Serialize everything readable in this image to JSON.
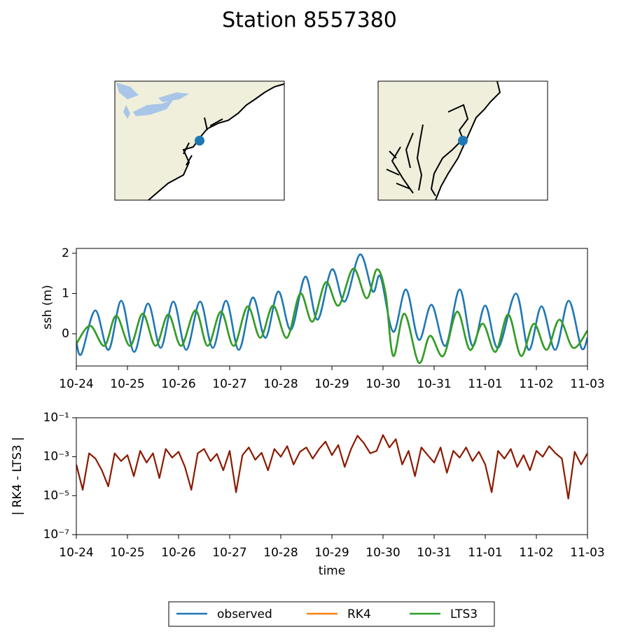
{
  "title": "Station 8557380",
  "chart_data": [
    {
      "type": "line",
      "ylabel": "ssh (m)",
      "xlim": [
        0,
        10
      ],
      "ylim": [
        -0.8,
        2.12
      ],
      "yticks": [
        0,
        1,
        2
      ],
      "xticks": [
        {
          "value": 0,
          "label": "10-24"
        },
        {
          "value": 1,
          "label": "10-25"
        },
        {
          "value": 2,
          "label": "10-26"
        },
        {
          "value": 3,
          "label": "10-27"
        },
        {
          "value": 4,
          "label": "10-28"
        },
        {
          "value": 5,
          "label": "10-29"
        },
        {
          "value": 6,
          "label": "10-30"
        },
        {
          "value": 7,
          "label": "10-31"
        },
        {
          "value": 8,
          "label": "11-01"
        },
        {
          "value": 9,
          "label": "11-02"
        },
        {
          "value": 10,
          "label": "11-03"
        }
      ],
      "legend": "lower center",
      "series": [
        {
          "name": "observed",
          "color": "#1f77b4",
          "x": [
            0,
            0.1,
            0.37,
            0.63,
            0.88,
            1.13,
            1.4,
            1.65,
            1.9,
            2.15,
            2.42,
            2.67,
            2.93,
            3.18,
            3.45,
            3.7,
            3.95,
            4.2,
            4.48,
            4.72,
            5.0,
            5.25,
            5.55,
            5.8,
            5.95,
            6.2,
            6.45,
            6.7,
            6.95,
            7.22,
            7.5,
            7.75,
            8.0,
            8.25,
            8.6,
            8.85,
            9.1,
            9.37,
            9.63,
            9.88,
            10
          ],
          "values": [
            -0.2,
            -0.5,
            0.58,
            -0.4,
            0.82,
            -0.45,
            0.75,
            -0.35,
            0.8,
            -0.4,
            0.8,
            -0.35,
            0.82,
            -0.4,
            0.9,
            -0.1,
            1.05,
            0.1,
            1.42,
            0.35,
            1.6,
            0.8,
            1.97,
            1.05,
            1.42,
            0.05,
            1.1,
            -0.15,
            0.72,
            -0.3,
            1.1,
            -0.3,
            0.7,
            -0.35,
            1.0,
            -0.4,
            0.68,
            -0.4,
            0.82,
            -0.35,
            -0.1
          ]
        },
        {
          "name": "RK4",
          "color": "#ff7f0e",
          "x": [
            0,
            0.27,
            0.55,
            0.78,
            1.05,
            1.3,
            1.55,
            1.8,
            2.05,
            2.33,
            2.57,
            2.83,
            3.08,
            3.35,
            3.6,
            3.85,
            4.12,
            4.38,
            4.62,
            4.88,
            5.13,
            5.42,
            5.68,
            5.88,
            6.05,
            6.2,
            6.42,
            6.7,
            6.92,
            7.18,
            7.45,
            7.7,
            7.95,
            8.2,
            8.45,
            8.7,
            8.95,
            9.2,
            9.45,
            9.72,
            10
          ],
          "values": [
            -0.25,
            0.2,
            -0.3,
            0.45,
            -0.3,
            0.5,
            -0.3,
            0.48,
            -0.3,
            0.58,
            -0.3,
            0.55,
            -0.3,
            0.68,
            -0.1,
            0.7,
            -0.1,
            1.0,
            0.3,
            1.28,
            0.7,
            1.62,
            0.88,
            1.6,
            1.0,
            -0.55,
            0.5,
            -0.72,
            -0.05,
            -0.55,
            0.55,
            -0.4,
            0.25,
            -0.45,
            0.48,
            -0.55,
            0.25,
            -0.4,
            0.35,
            -0.35,
            0.08
          ]
        },
        {
          "name": "LTS3",
          "color": "#2ca02c",
          "x": [
            0,
            0.27,
            0.55,
            0.78,
            1.05,
            1.3,
            1.55,
            1.8,
            2.05,
            2.33,
            2.57,
            2.83,
            3.08,
            3.35,
            3.6,
            3.85,
            4.12,
            4.38,
            4.62,
            4.88,
            5.13,
            5.42,
            5.68,
            5.88,
            6.05,
            6.2,
            6.42,
            6.7,
            6.92,
            7.18,
            7.45,
            7.7,
            7.95,
            8.2,
            8.45,
            8.7,
            8.95,
            9.2,
            9.45,
            9.72,
            10
          ],
          "values": [
            -0.25,
            0.2,
            -0.3,
            0.45,
            -0.3,
            0.5,
            -0.3,
            0.48,
            -0.3,
            0.58,
            -0.3,
            0.55,
            -0.3,
            0.68,
            -0.1,
            0.7,
            -0.1,
            1.0,
            0.3,
            1.28,
            0.7,
            1.62,
            0.88,
            1.6,
            1.0,
            -0.55,
            0.5,
            -0.72,
            -0.05,
            -0.55,
            0.55,
            -0.4,
            0.25,
            -0.45,
            0.48,
            -0.55,
            0.25,
            -0.4,
            0.35,
            -0.35,
            0.08
          ]
        }
      ]
    },
    {
      "type": "line",
      "ylabel": "| RK4 - LTS3 |",
      "xlabel": "time",
      "yscale": "log",
      "color": "#8b1a00",
      "xlim": [
        0,
        10
      ],
      "ylim": [
        1e-07,
        0.1
      ],
      "yticks": [
        {
          "value": 1e-07,
          "label": "10⁻⁷"
        },
        {
          "value": 1e-05,
          "label": "10⁻⁵"
        },
        {
          "value": 0.001,
          "label": "10⁻³"
        },
        {
          "value": 0.1,
          "label": "10⁻¹"
        }
      ],
      "xticks": [
        {
          "value": 0,
          "label": "10-24"
        },
        {
          "value": 1,
          "label": "10-25"
        },
        {
          "value": 2,
          "label": "10-26"
        },
        {
          "value": 3,
          "label": "10-27"
        },
        {
          "value": 4,
          "label": "10-28"
        },
        {
          "value": 5,
          "label": "10-29"
        },
        {
          "value": 6,
          "label": "10-30"
        },
        {
          "value": 7,
          "label": "10-31"
        },
        {
          "value": 8,
          "label": "11-01"
        },
        {
          "value": 9,
          "label": "11-02"
        },
        {
          "value": 10,
          "label": "11-03"
        }
      ],
      "x": [
        0,
        0.125,
        0.25,
        0.375,
        0.5,
        0.625,
        0.75,
        0.875,
        1,
        1.125,
        1.25,
        1.375,
        1.5,
        1.625,
        1.75,
        1.875,
        2,
        2.125,
        2.25,
        2.375,
        2.5,
        2.625,
        2.75,
        2.875,
        3,
        3.125,
        3.25,
        3.375,
        3.5,
        3.625,
        3.75,
        3.875,
        4,
        4.125,
        4.25,
        4.375,
        4.5,
        4.625,
        4.75,
        4.875,
        5,
        5.125,
        5.25,
        5.375,
        5.5,
        5.625,
        5.75,
        5.875,
        6,
        6.125,
        6.25,
        6.375,
        6.5,
        6.625,
        6.75,
        6.875,
        7,
        7.125,
        7.25,
        7.375,
        7.5,
        7.625,
        7.75,
        7.875,
        8,
        8.125,
        8.25,
        8.375,
        8.5,
        8.625,
        8.75,
        8.875,
        9,
        9.125,
        9.25,
        9.375,
        9.5,
        9.625,
        9.75,
        9.875,
        10
      ],
      "values": [
        0.0004,
        2e-05,
        0.0015,
        0.0008,
        0.0002,
        3e-05,
        0.0015,
        0.0006,
        0.0012,
        0.0001,
        0.002,
        0.0005,
        0.0015,
        8e-05,
        0.0025,
        0.0009,
        0.0018,
        0.0003,
        2e-05,
        0.0015,
        0.0025,
        0.0006,
        0.0014,
        0.0002,
        0.002,
        1.5e-05,
        0.0012,
        0.003,
        0.0007,
        0.0016,
        0.0002,
        0.0025,
        0.001,
        0.0035,
        0.0004,
        0.0018,
        0.003,
        0.0008,
        0.0025,
        0.006,
        0.0012,
        0.004,
        0.0003,
        0.0025,
        0.012,
        0.005,
        0.0015,
        0.002,
        0.013,
        0.003,
        0.008,
        0.0004,
        0.002,
        0.0001,
        0.003,
        0.0012,
        0.0005,
        0.003,
        0.00015,
        0.002,
        0.0009,
        0.003,
        0.0006,
        0.0018,
        0.0004,
        1.5e-05,
        0.002,
        0.0008,
        0.0025,
        0.0003,
        0.0012,
        0.0002,
        0.002,
        0.001,
        0.0035,
        0.0015,
        0.0008,
        7e-06,
        0.0018,
        0.0004,
        0.0015
      ]
    }
  ]
}
